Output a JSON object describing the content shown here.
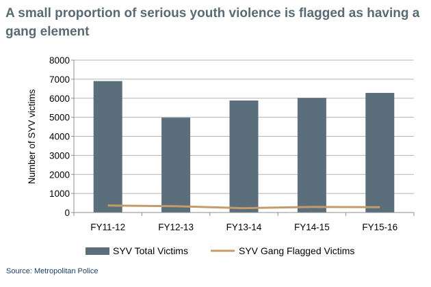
{
  "title": "A small proportion of serious youth violence is flagged as having a gang element",
  "source": "Source: Metropolitan Police",
  "colors": {
    "bar": "#5b6e7c",
    "line": "#c59b6c",
    "grid": "#b3b3b3",
    "axis": "#8c8c8c",
    "title": "#586a73",
    "source": "#1f3f63"
  },
  "chart_data": {
    "type": "bar",
    "categories": [
      "FY11-12",
      "FY12-13",
      "FY13-14",
      "FY14-15",
      "FY15-16"
    ],
    "series": [
      {
        "name": "SYV Total Victims",
        "type": "bar",
        "values": [
          6900,
          4980,
          5880,
          6020,
          6280
        ]
      },
      {
        "name": "SYV Gang Flagged Victims",
        "type": "line",
        "values": [
          370,
          330,
          230,
          290,
          280
        ]
      }
    ],
    "xlabel": "",
    "ylabel": "Number of SYV victims",
    "ylim": [
      0,
      8000
    ],
    "yticks": [
      0,
      1000,
      2000,
      3000,
      4000,
      5000,
      6000,
      7000,
      8000
    ],
    "grid": true,
    "legend_position": "bottom"
  }
}
